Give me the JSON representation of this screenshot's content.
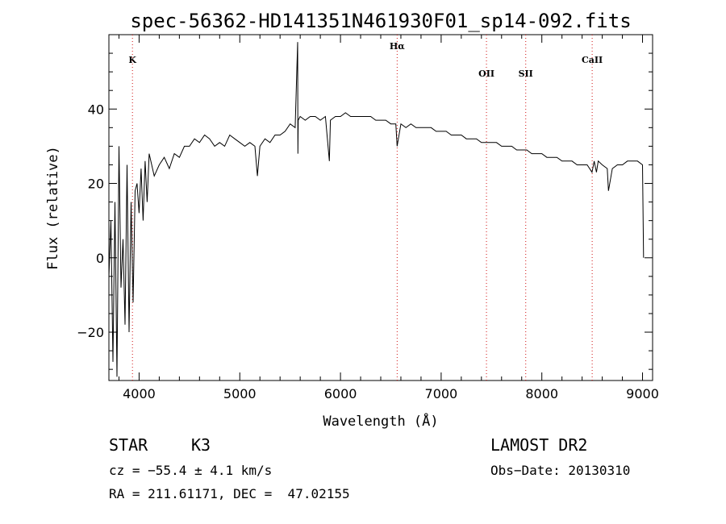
{
  "chart_data": {
    "type": "line",
    "title": "spec-56362-HD141351N461930F01_sp14-092.fits",
    "xlabel": "Wavelength (Å)",
    "ylabel": "Flux (relative)",
    "xlim": [
      3700,
      9100
    ],
    "ylim": [
      -33,
      60
    ],
    "xticks": [
      4000,
      5000,
      6000,
      7000,
      8000,
      9000
    ],
    "yticks": [
      -20,
      0,
      20,
      40
    ],
    "grid": false,
    "spectral_lines": [
      {
        "label": "K",
        "wavelength": 3934
      },
      {
        "label": "Hα",
        "wavelength": 6563
      },
      {
        "label": "OII",
        "wavelength": 7450
      },
      {
        "label": "SII",
        "wavelength": 7840
      },
      {
        "label": "CaII",
        "wavelength": 8500
      }
    ],
    "series": [
      {
        "x": [
          3700,
          3720,
          3740,
          3760,
          3780,
          3800,
          3820,
          3840,
          3860,
          3880,
          3900,
          3920,
          3940,
          3960,
          3980,
          4000,
          4020,
          4040,
          4060,
          4080,
          4100,
          4150,
          4200,
          4250,
          4300,
          4350,
          4400,
          4450,
          4500,
          4550,
          4600,
          4650,
          4700,
          4750,
          4800,
          4850,
          4900,
          4950,
          5000,
          5050,
          5100,
          5150,
          5175,
          5200,
          5250,
          5300,
          5350,
          5400,
          5450,
          5500,
          5550,
          5575,
          5577,
          5580,
          5600,
          5650,
          5700,
          5750,
          5800,
          5850,
          5890,
          5900,
          5950,
          6000,
          6050,
          6100,
          6150,
          6200,
          6250,
          6300,
          6350,
          6400,
          6450,
          6500,
          6550,
          6563,
          6600,
          6650,
          6700,
          6750,
          6800,
          6850,
          6900,
          6950,
          7000,
          7050,
          7100,
          7150,
          7200,
          7250,
          7300,
          7350,
          7400,
          7450,
          7500,
          7550,
          7600,
          7650,
          7700,
          7750,
          7800,
          7850,
          7900,
          7950,
          8000,
          8050,
          8100,
          8150,
          8200,
          8250,
          8300,
          8350,
          8400,
          8450,
          8498,
          8520,
          8542,
          8560,
          8600,
          8650,
          8662,
          8700,
          8750,
          8800,
          8850,
          8900,
          8950,
          9000,
          9010
        ],
        "y": [
          -5,
          10,
          -28,
          15,
          -32,
          30,
          -8,
          5,
          -18,
          25,
          -20,
          15,
          -12,
          18,
          20,
          12,
          24,
          10,
          26,
          15,
          28,
          22,
          25,
          27,
          24,
          28,
          27,
          30,
          30,
          32,
          31,
          33,
          32,
          30,
          31,
          30,
          33,
          32,
          31,
          30,
          31,
          30,
          22,
          30,
          32,
          31,
          33,
          33,
          34,
          36,
          35,
          58,
          28,
          37,
          38,
          37,
          38,
          38,
          37,
          38,
          26,
          37,
          38,
          38,
          39,
          38,
          38,
          38,
          38,
          38,
          37,
          37,
          37,
          36,
          36,
          30,
          36,
          35,
          36,
          35,
          35,
          35,
          35,
          34,
          34,
          34,
          33,
          33,
          33,
          32,
          32,
          32,
          31,
          31,
          31,
          31,
          30,
          30,
          30,
          29,
          29,
          29,
          28,
          28,
          28,
          27,
          27,
          27,
          26,
          26,
          26,
          25,
          25,
          25,
          23,
          26,
          23,
          26,
          25,
          24,
          18,
          24,
          25,
          25,
          26,
          26,
          26,
          25,
          0
        ]
      }
    ]
  },
  "info": {
    "object_class": "STAR",
    "subclass": "K3",
    "survey": "LAMOST DR2",
    "cz": "cz = −55.4 ± 4.1 km/s",
    "obs_date": "Obs−Date: 20130310",
    "coords": "RA = 211.61171, DEC =  47.02155"
  }
}
